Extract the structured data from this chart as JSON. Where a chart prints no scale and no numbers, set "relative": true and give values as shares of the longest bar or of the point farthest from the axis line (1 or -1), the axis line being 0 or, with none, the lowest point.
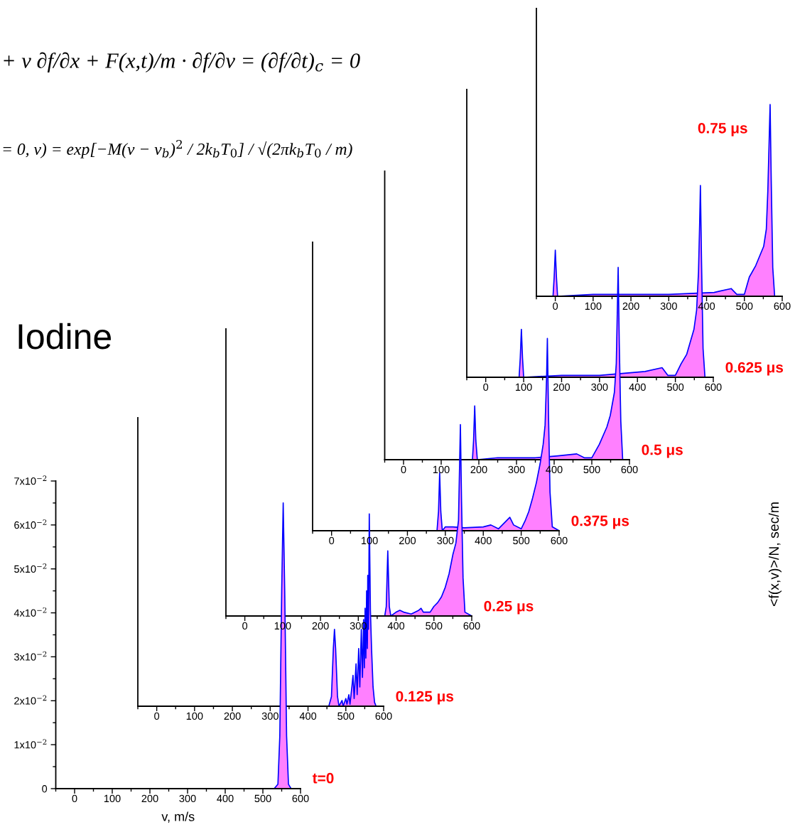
{
  "chart_data": [
    {
      "type": "area",
      "title": "Iodine",
      "xlabel": "v, m/s",
      "ylabel": "<f(x,v)>/N, sec/m",
      "annotations": [
        "+ v ∂f/∂x + F(x,t)/m · ∂f/∂v = (∂f/∂t)$_{c}$ = 0",
        "= 0, v) = exp[−M(v − v$_{b}$)$^{2}$ / 2k$_{b}$T$_{0}$] / √(2πk$_{b}$T$_{0}$ / m)",
        "t=0"
      ],
      "series": [
        {
          "color": "#0000ff",
          "x": [
            -50,
            530,
            540,
            545,
            550,
            554,
            558,
            563,
            568,
            575,
            600
          ],
          "values": [
            0,
            0,
            0.001,
            0.012,
            0.045,
            0.065,
            0.045,
            0.012,
            0.001,
            0,
            0
          ]
        }
      ],
      "xlim": [
        -50,
        600
      ],
      "xticks": [
        0,
        100,
        200,
        300,
        400,
        500,
        600
      ],
      "ylim": [
        0,
        0.07
      ],
      "yticks": [
        0,
        {
          "value": 0.01,
          "label": "1x10$^{−2}$"
        },
        {
          "value": 0.02,
          "label": "2x10$^{−2}$"
        },
        {
          "value": 0.03,
          "label": "3x10$^{−2}$"
        },
        {
          "value": 0.04,
          "label": "4x10$^{−2}$"
        },
        {
          "value": 0.05,
          "label": "5x10$^{−2}$"
        },
        {
          "value": 0.06,
          "label": "6x10$^{−2}$"
        },
        {
          "value": 0.07,
          "label": "7x10$^{−2}$"
        }
      ]
    },
    {
      "type": "area",
      "relative": true,
      "annotations": [
        "0.125 μs"
      ],
      "xlim": [
        -50,
        600
      ],
      "xticks": [
        0,
        100,
        200,
        300,
        400,
        500,
        600
      ],
      "series": [
        {
          "color": "#0000ff",
          "x": [
            -50,
            455,
            462,
            467,
            470,
            473,
            478,
            482,
            490,
            493,
            500,
            503,
            508,
            511,
            516,
            519,
            522,
            527,
            530,
            534,
            537,
            541,
            544,
            547,
            549,
            551,
            553,
            555,
            557,
            558,
            560,
            562,
            565,
            568,
            572,
            576,
            580,
            600
          ],
          "values": [
            0,
            0,
            0.05,
            0.3,
            0.4,
            0.3,
            0.05,
            0,
            0.03,
            0,
            0.04,
            0.01,
            0.06,
            0.01,
            0.1,
            0.16,
            0.04,
            0.22,
            0.06,
            0.3,
            0.1,
            0.4,
            0.15,
            0.45,
            0.2,
            0.51,
            0.25,
            0.6,
            0.3,
            0.68,
            0.4,
            1.0,
            0.5,
            0.3,
            0.1,
            0.02,
            0,
            0
          ]
        }
      ]
    },
    {
      "type": "area",
      "relative": true,
      "annotations": [
        "0.25 μs"
      ],
      "xlim": [
        -50,
        600
      ],
      "xticks": [
        0,
        100,
        200,
        300,
        400,
        500,
        600
      ],
      "series": [
        {
          "color": "#0000ff",
          "x": [
            -50,
            370,
            374,
            378,
            382,
            386,
            400,
            410,
            420,
            440,
            460,
            466,
            472,
            490,
            500,
            510,
            520,
            530,
            540,
            550,
            558,
            565,
            568,
            570,
            573,
            577,
            582,
            600
          ],
          "values": [
            0,
            0,
            0.05,
            0.34,
            0.05,
            0,
            0.02,
            0.03,
            0.02,
            0.01,
            0.03,
            0.04,
            0.02,
            0.02,
            0.05,
            0.07,
            0.1,
            0.15,
            0.22,
            0.32,
            0.38,
            0.5,
            0.8,
            1.0,
            0.6,
            0.2,
            0.02,
            0
          ]
        }
      ]
    },
    {
      "type": "area",
      "relative": true,
      "annotations": [
        "0.375 μs"
      ],
      "xlim": [
        -50,
        600
      ],
      "xticks": [
        0,
        100,
        200,
        300,
        400,
        500,
        600
      ],
      "series": [
        {
          "color": "#0000ff",
          "x": [
            -50,
            278,
            282,
            285,
            288,
            292,
            300,
            320,
            350,
            400,
            420,
            440,
            470,
            480,
            500,
            510,
            520,
            530,
            540,
            550,
            558,
            563,
            567,
            569,
            572,
            576,
            582,
            600
          ],
          "values": [
            0,
            0,
            0.1,
            0.3,
            0.1,
            0,
            0.02,
            0.02,
            0.015,
            0.02,
            0.03,
            0.01,
            0.07,
            0.03,
            0.01,
            0.05,
            0.1,
            0.17,
            0.25,
            0.35,
            0.45,
            0.55,
            0.8,
            1.0,
            0.6,
            0.2,
            0.02,
            0
          ]
        }
      ]
    },
    {
      "type": "area",
      "relative": true,
      "annotations": [
        "0.5 μs"
      ],
      "xlim": [
        -50,
        600
      ],
      "xticks": [
        0,
        100,
        200,
        300,
        400,
        500,
        600
      ],
      "series": [
        {
          "color": "#0000ff",
          "x": [
            -50,
            183,
            186,
            189,
            192,
            196,
            250,
            350,
            410,
            460,
            480,
            500,
            520,
            540,
            549,
            560,
            565,
            568,
            570,
            573,
            577,
            582,
            600
          ],
          "values": [
            0,
            0,
            0.1,
            0.28,
            0.1,
            0,
            0.01,
            0.01,
            0.02,
            0.03,
            0.01,
            0.01,
            0.08,
            0.17,
            0.23,
            0.35,
            0.5,
            0.8,
            1.0,
            0.6,
            0.2,
            0,
            0
          ]
        }
      ]
    },
    {
      "type": "area",
      "relative": true,
      "annotations": [
        "0.625 μs"
      ],
      "xlim": [
        -50,
        600
      ],
      "xticks": [
        0,
        100,
        200,
        300,
        400,
        500,
        600
      ],
      "series": [
        {
          "color": "#0000ff",
          "x": [
            -50,
            88,
            91,
            94,
            97,
            100,
            200,
            300,
            420,
            465,
            480,
            500,
            515,
            530,
            549,
            556,
            561,
            564,
            566,
            569,
            573,
            578,
            600
          ],
          "values": [
            0,
            0,
            0.1,
            0.25,
            0.1,
            0,
            0.01,
            0.01,
            0.03,
            0.05,
            0.01,
            0.01,
            0.07,
            0.12,
            0.25,
            0.35,
            0.55,
            0.8,
            1.0,
            0.6,
            0.15,
            0,
            0
          ]
        }
      ]
    },
    {
      "type": "area",
      "relative": true,
      "annotations": [
        "0.75 μs"
      ],
      "xlim": [
        -50,
        600
      ],
      "xticks": [
        0,
        100,
        200,
        300,
        400,
        500,
        600
      ],
      "series": [
        {
          "color": "#0000ff",
          "x": [
            -50,
            -6,
            -3,
            0,
            3,
            6,
            100,
            300,
            420,
            465,
            480,
            500,
            513,
            530,
            551,
            558,
            562,
            566,
            568,
            571,
            575,
            580,
            600
          ],
          "values": [
            0,
            0,
            0.1,
            0.24,
            0.1,
            0,
            0.01,
            0.01,
            0.02,
            0.04,
            0.01,
            0.01,
            0.1,
            0.16,
            0.26,
            0.35,
            0.55,
            0.85,
            1.0,
            0.6,
            0.15,
            0,
            0
          ]
        }
      ]
    }
  ]
}
